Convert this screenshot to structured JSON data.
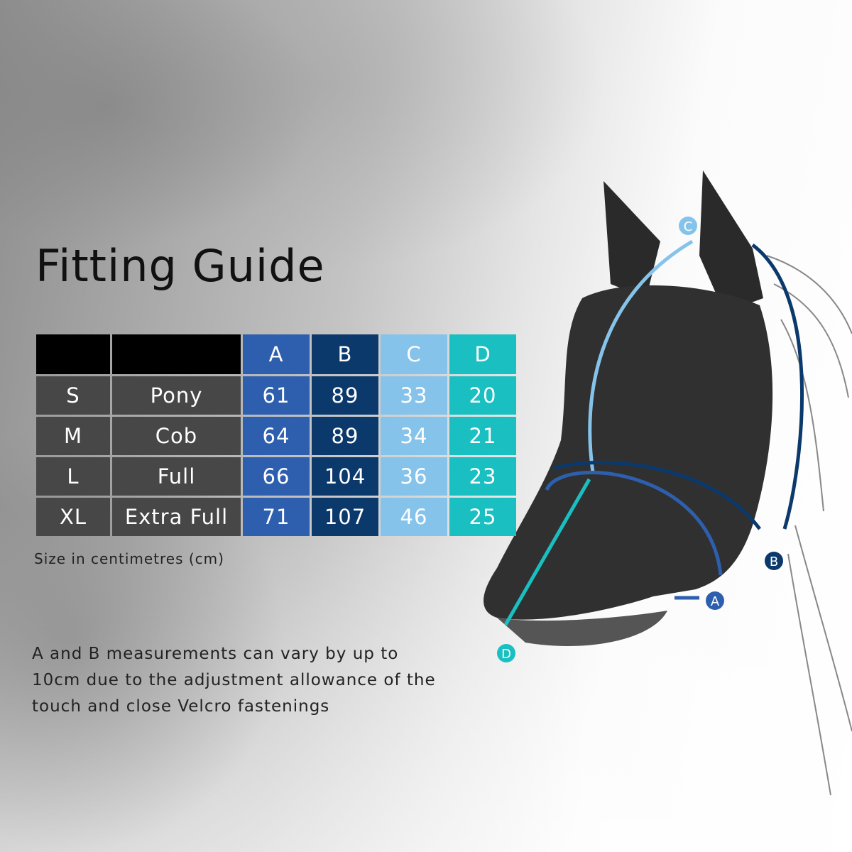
{
  "title": "Fitting Guide",
  "table": {
    "headers": [
      "",
      "",
      "A",
      "B",
      "C",
      "D"
    ],
    "rows": [
      {
        "size": "S",
        "name": "Pony",
        "values": [
          "61",
          "89",
          "33",
          "20"
        ]
      },
      {
        "size": "M",
        "name": "Cob",
        "values": [
          "64",
          "89",
          "34",
          "21"
        ]
      },
      {
        "size": "L",
        "name": "Full",
        "values": [
          "66",
          "104",
          "36",
          "23"
        ]
      },
      {
        "size": "XL",
        "name": "Extra Full",
        "values": [
          "71",
          "107",
          "46",
          "25"
        ]
      }
    ]
  },
  "unit_note": "Size in centimetres (cm)",
  "description": [
    "A and B measurements can vary by up to",
    "10cm due to the adjustment allowance of the",
    "touch and close Velcro fastenings"
  ],
  "markers": {
    "A": "A",
    "B": "B",
    "C": "C",
    "D": "D"
  },
  "colors": {
    "A": "#2e5fae",
    "B": "#0b396c",
    "C": "#86c3ea",
    "D": "#19bfc1"
  }
}
